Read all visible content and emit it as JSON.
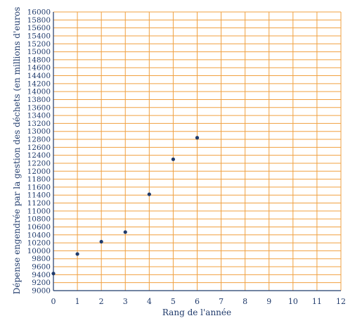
{
  "chart_data": {
    "type": "scatter",
    "title": "",
    "xlabel": "Rang de l'année",
    "ylabel": "Dépense engendrée par la gestion des déchets (en millions d'euros",
    "xlim": [
      0,
      12
    ],
    "ylim": [
      9000,
      16000
    ],
    "x_ticks": [
      "0",
      "1",
      "2",
      "3",
      "4",
      "5",
      "6",
      "7",
      "8",
      "9",
      "10",
      "11",
      "12"
    ],
    "y_ticks": [
      "9000",
      "9200",
      "9400",
      "9600",
      "9800",
      "10000",
      "10200",
      "10400",
      "10600",
      "10800",
      "11000",
      "11200",
      "11400",
      "11600",
      "11800",
      "12000",
      "12200",
      "12400",
      "12600",
      "12800",
      "13000",
      "13200",
      "13400",
      "13600",
      "13800",
      "14000",
      "14200",
      "14400",
      "14600",
      "14800",
      "15000",
      "15200",
      "15400",
      "15600",
      "15800",
      "16000"
    ],
    "grid": true,
    "colors": {
      "grid": "#f0a040",
      "axis": "#1f3a6b",
      "point": "#1f3a6b",
      "text": "#1f3a6b"
    },
    "points": [
      {
        "x": 0,
        "y": 9430
      },
      {
        "x": 1,
        "y": 9920
      },
      {
        "x": 2,
        "y": 10230
      },
      {
        "x": 3,
        "y": 10470
      },
      {
        "x": 4,
        "y": 11420
      },
      {
        "x": 5,
        "y": 12300
      },
      {
        "x": 6,
        "y": 12840
      }
    ]
  }
}
